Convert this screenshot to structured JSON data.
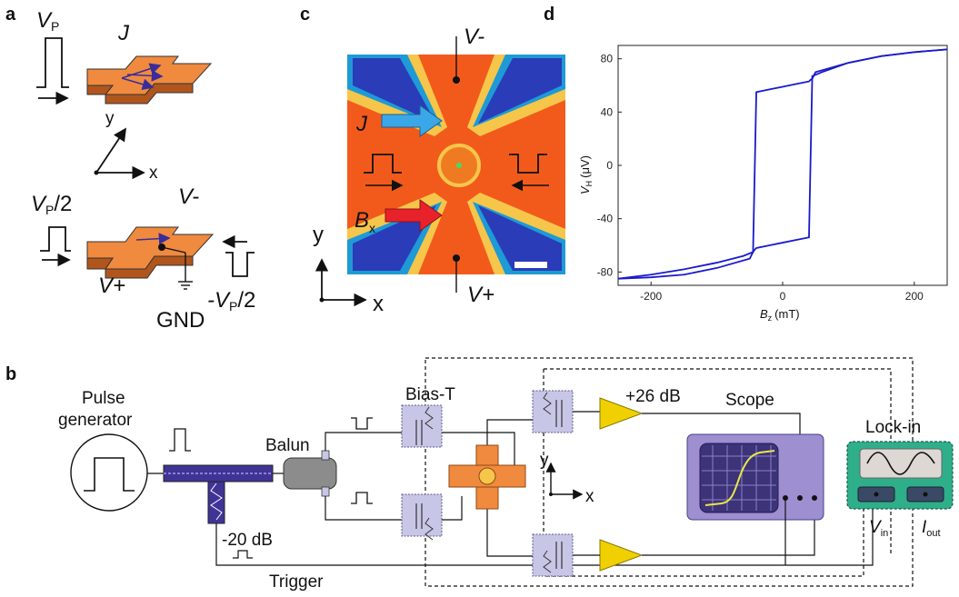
{
  "panels": {
    "a": "a",
    "b": "b",
    "c": "c",
    "d": "d"
  },
  "panel_a": {
    "vp": "V",
    "vp_sub": "P",
    "j": "J",
    "axis_y": "y",
    "axis_x": "x",
    "vp2": "V",
    "vp2_sub": "P",
    "vp2_suffix": "/2",
    "vminus": "V-",
    "vplus": "V+",
    "gnd": "GND",
    "neg_vp2_prefix": "-V",
    "neg_vp2_sub": "P",
    "neg_vp2_suffix": "/2"
  },
  "panel_c": {
    "vminus": "V-",
    "vplus": "V+",
    "j": "J",
    "bx": "B",
    "bx_sub": "x",
    "axis_y": "y",
    "axis_x": "x"
  },
  "panel_b": {
    "pulse_generator_line1": "Pulse",
    "pulse_generator_line2": "generator",
    "balun": "Balun",
    "bias_t": "Bias-T",
    "attenuator": "-20 dB",
    "amplifier_gain": "+26 dB",
    "scope": "Scope",
    "lockin": "Lock-in",
    "vin": "V",
    "vin_sub": "in",
    "iout": "I",
    "iout_sub": "out",
    "trigger": "Trigger",
    "axis_y": "y",
    "axis_x": "x"
  },
  "chart_data": {
    "type": "line",
    "title": "",
    "xlabel": "B",
    "xlabel_sub": "z",
    "xlabel_unit": "(mT)",
    "ylabel": "V",
    "ylabel_sub": "H",
    "ylabel_unit": "(μV)",
    "xlim": [
      -250,
      250
    ],
    "ylim": [
      -90,
      90
    ],
    "xticks": [
      -200,
      0,
      200
    ],
    "yticks": [
      80,
      40,
      0,
      -40,
      -80
    ],
    "grid": false,
    "series": [
      {
        "color": "#1a1acc",
        "x": [
          -250,
          -200,
          -150,
          -100,
          -60,
          -45,
          -40,
          -20,
          0,
          20,
          40,
          42,
          45,
          50,
          100,
          150,
          200,
          250
        ],
        "y": [
          -85,
          -82,
          -78,
          -73,
          -68,
          -65,
          55,
          57,
          59,
          61,
          63,
          64,
          65,
          70,
          77,
          82,
          85,
          87
        ]
      },
      {
        "color": "#1a1acc",
        "x": [
          250,
          200,
          150,
          100,
          60,
          45,
          40,
          20,
          0,
          -20,
          -40,
          -42,
          -45,
          -50,
          -100,
          -150,
          -200,
          -250
        ],
        "y": [
          87,
          85,
          82,
          77,
          70,
          67,
          -54,
          -56,
          -58,
          -60,
          -62,
          -63,
          -65,
          -70,
          -77,
          -82,
          -84,
          -85
        ]
      }
    ]
  },
  "colors": {
    "orange": "#f08a3e",
    "orange_dark": "#b0561c",
    "lavender": "#c8c6e6",
    "purple": "#5b4ca8",
    "scope_body": "#9d8fd0",
    "lockin_green": "#2fae8a",
    "amp_yellow": "#f0d000"
  }
}
